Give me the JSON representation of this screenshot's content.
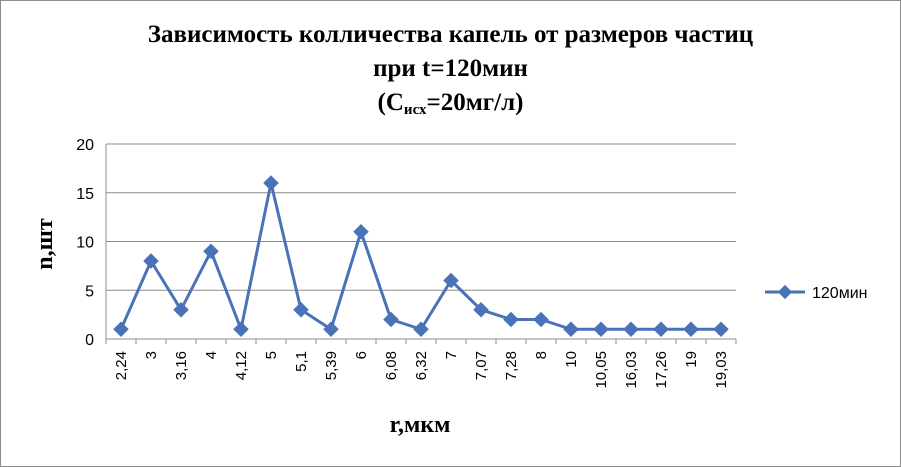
{
  "chart_data": {
    "type": "line",
    "title_line1": "Зависимость колличества капель от размеров частиц",
    "title_line2": "при t=120мин",
    "title_line3_prefix": "(С",
    "title_line3_sub": "исх",
    "title_line3_suffix": "=20мг/л)",
    "xlabel": "r,мкм",
    "ylabel": "n,шт",
    "ylim": [
      0,
      20
    ],
    "yticks": [
      "0",
      "5",
      "10",
      "15",
      "20"
    ],
    "categories": [
      "2,24",
      "3",
      "3,16",
      "4",
      "4,12",
      "5",
      "5,1",
      "5,39",
      "6",
      "6,08",
      "6,32",
      "7",
      "7,07",
      "7,28",
      "8",
      "10",
      "10,05",
      "16,03",
      "17,26",
      "19",
      "19,03"
    ],
    "series": [
      {
        "name": "120мин",
        "color": "#4a72b8",
        "values": [
          1,
          8,
          3,
          9,
          1,
          16,
          3,
          1,
          11,
          2,
          1,
          6,
          3,
          2,
          2,
          1,
          1,
          1,
          1,
          1,
          1
        ]
      }
    ],
    "grid": true,
    "legend_position": "right",
    "marker": "diamond"
  }
}
